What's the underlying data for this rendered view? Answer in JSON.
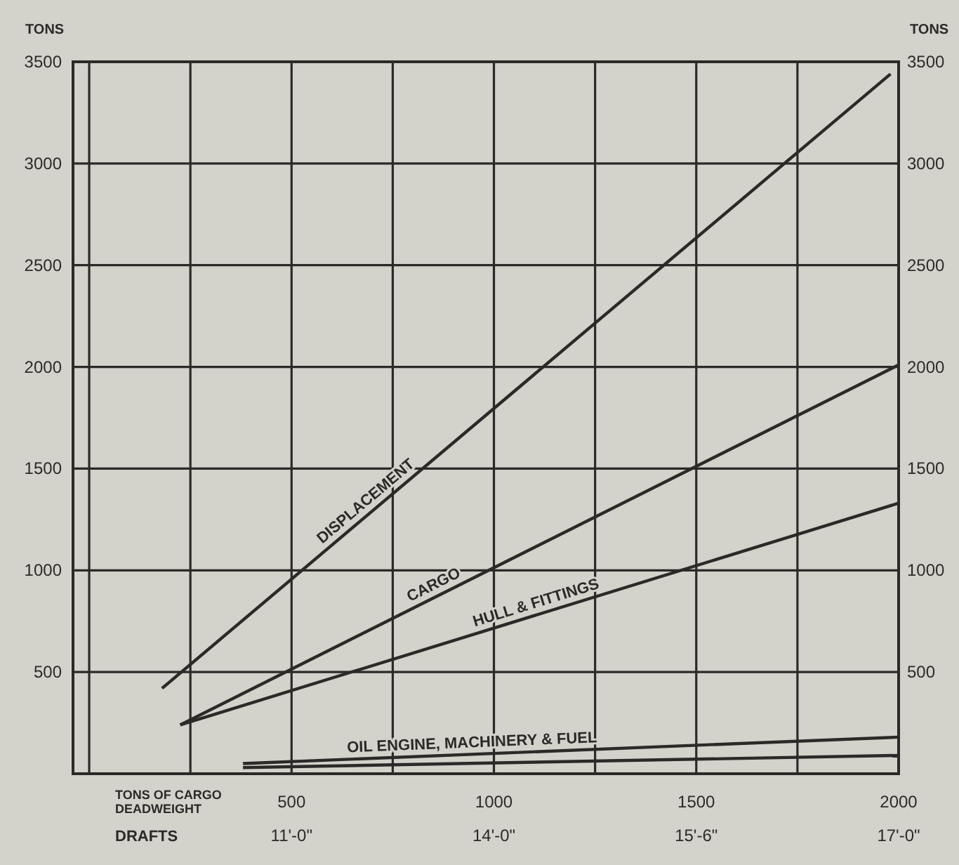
{
  "chart_data": {
    "type": "line",
    "xlabel": "TONS OF CARGO DEADWEIGHT",
    "ylabel": "TONS",
    "y2label": "TONS",
    "xlim": [
      -40,
      2000
    ],
    "xticks": [
      {
        "value": 0,
        "label": null
      },
      {
        "value": 250,
        "label": null
      },
      500,
      {
        "value": 750,
        "label": null
      },
      1000,
      {
        "value": 1250,
        "label": null
      },
      1500,
      {
        "value": 1750,
        "label": null
      },
      2000
    ],
    "ylim": [
      0,
      3500
    ],
    "yticks": [
      500,
      1000,
      1500,
      2000,
      2500,
      3000,
      3500
    ],
    "y2lim": [
      0,
      3500
    ],
    "y2ticks": [
      500,
      1000,
      1500,
      2000,
      2500,
      3000,
      3500
    ],
    "grid": true,
    "marker": "none",
    "line_style": "solid",
    "series": [
      {
        "name": "DISPLACEMENT",
        "color": "#2b2a28",
        "x": [
          180,
          1980
        ],
        "values": [
          420,
          3440
        ]
      },
      {
        "name": "CARGO",
        "color": "#2b2a28",
        "x": [
          225,
          2000
        ],
        "values": [
          240,
          2010
        ]
      },
      {
        "name": "HULL & FITTINGS",
        "color": "#2b2a28",
        "x": [
          225,
          2000
        ],
        "values": [
          240,
          1330
        ]
      },
      {
        "name": "OIL ENGINE, MACHINERY & FUEL",
        "color": "#2b2a28",
        "x": [
          380,
          2000
        ],
        "values": [
          50,
          180
        ]
      },
      {
        "color": "#2b2a28",
        "x": [
          380,
          2000
        ],
        "values": [
          30,
          90
        ]
      }
    ],
    "annotations": [
      "DRAFTS",
      "11'-0\"",
      "14'-0\"",
      "15'-6\"",
      "17'-0\""
    ]
  }
}
